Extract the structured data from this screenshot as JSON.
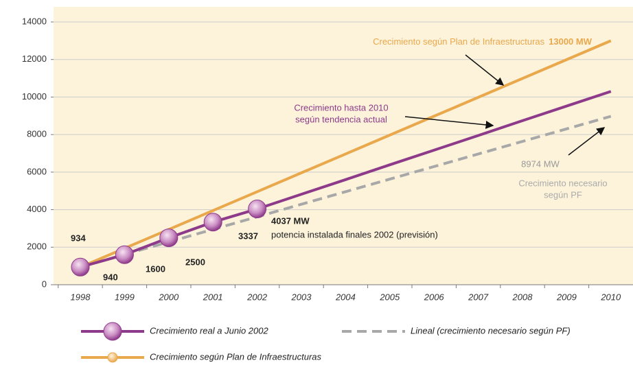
{
  "chart_data": {
    "type": "line",
    "categories": [
      "1998",
      "1999",
      "2000",
      "2001",
      "2002",
      "2003",
      "2004",
      "2005",
      "2006",
      "2007",
      "2008",
      "2009",
      "2010"
    ],
    "ylim": [
      0,
      14000
    ],
    "yticks": [
      0,
      2000,
      4000,
      6000,
      8000,
      10000,
      12000,
      14000
    ],
    "grid": true,
    "series": [
      {
        "name": "Crecimiento real a Junio 2002",
        "color": "#8e3a8a",
        "markers": true,
        "values": [
          940,
          1600,
          2500,
          3337,
          4037,
          null,
          null,
          null,
          null,
          null,
          null,
          null,
          null
        ],
        "value_labels": [
          "940",
          "1600",
          "2500",
          "3337",
          "4037 MW",
          null,
          null,
          null,
          null,
          null,
          null,
          null,
          null
        ],
        "note": "potencia instalada finales 2002 (previsión)"
      },
      {
        "name": "Lineal (crecimiento necesario según PF)",
        "color": "#a8a8a8",
        "dashed": true,
        "values": [
          940,
          1610,
          2279,
          2949,
          3618,
          4288,
          4957,
          5627,
          6296,
          6966,
          7635,
          8305,
          8974
        ],
        "value_labels": [
          null,
          null,
          null,
          null,
          null,
          null,
          null,
          null,
          null,
          null,
          null,
          null,
          "8974 MW"
        ],
        "annotation": [
          "Crecimiento necesario",
          "según PF"
        ]
      },
      {
        "name": "Crecimiento según Plan de Infraestructuras",
        "color": "#e9a84c",
        "values": [
          934,
          1940,
          2945,
          3951,
          4956,
          5962,
          6967,
          7973,
          8978,
          9984,
          10989,
          11995,
          13000
        ],
        "value_labels": [
          null,
          null,
          null,
          null,
          null,
          null,
          null,
          null,
          null,
          null,
          null,
          null,
          "13000 MW"
        ],
        "annotation": "Crecimiento según Plan de Infraestructuras"
      }
    ],
    "trend_line": {
      "label": [
        "Crecimiento hasta 2010",
        "según tendencia actual"
      ],
      "color": "#8e3a8a",
      "values": [
        null,
        null,
        null,
        null,
        4037,
        4820,
        5600,
        6390,
        7170,
        7950,
        8740,
        9520,
        10300
      ]
    }
  }
}
